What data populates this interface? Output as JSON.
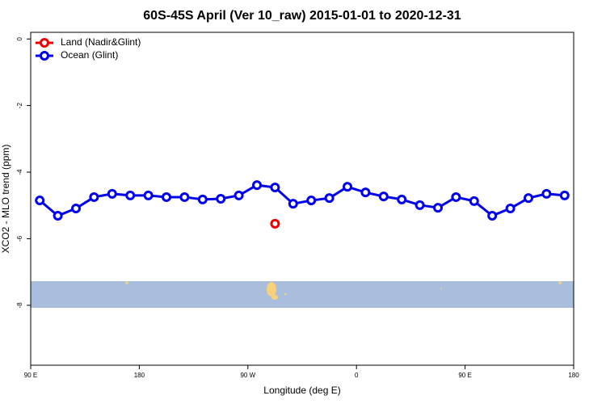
{
  "chart_data": {
    "type": "line",
    "title": "60S-45S April (Ver 10_raw)   2015-01-01 to 2020-12-31",
    "xlabel": "Longitude (deg E)",
    "ylabel": "XCO2 - MLO trend (ppm)",
    "xlim": [
      90,
      540
    ],
    "xticks": [
      {
        "value": 90,
        "label": "90 E"
      },
      180,
      {
        "value": 270,
        "label": "90 W"
      },
      {
        "value": 360,
        "label": "0"
      },
      {
        "value": 450,
        "label": "90 E"
      },
      {
        "value": 540,
        "label": "180"
      }
    ],
    "ylim": [
      -9.8,
      0.2
    ],
    "yticks": [
      0,
      -2,
      -4,
      -6,
      -8
    ],
    "legend": "top-left",
    "series": [
      {
        "name": "Land (Nadir&Glint)",
        "color": "#ee0000",
        "x": [
          292.5
        ],
        "values": [
          -5.55
        ]
      },
      {
        "name": "Ocean (Glint)",
        "color": "#0000ee",
        "x": [
          97.5,
          112.5,
          127.5,
          142.5,
          157.5,
          172.5,
          187.5,
          202.5,
          217.5,
          232.5,
          247.5,
          262.5,
          277.5,
          292.5,
          307.5,
          322.5,
          337.5,
          352.5,
          367.5,
          382.5,
          397.5,
          412.5,
          427.5,
          442.5,
          457.5,
          472.5,
          487.5,
          502.5,
          517.5,
          532.5
        ],
        "values": [
          -4.85,
          -5.31,
          -5.09,
          -4.75,
          -4.65,
          -4.7,
          -4.7,
          -4.75,
          -4.75,
          -4.82,
          -4.8,
          -4.7,
          -4.39,
          -4.46,
          -4.95,
          -4.85,
          -4.78,
          -4.44,
          -4.61,
          -4.73,
          -4.82,
          -4.99,
          -5.07,
          -4.75,
          -4.87,
          -5.31,
          -5.09,
          -4.78,
          -4.65,
          -4.7
        ]
      }
    ]
  }
}
